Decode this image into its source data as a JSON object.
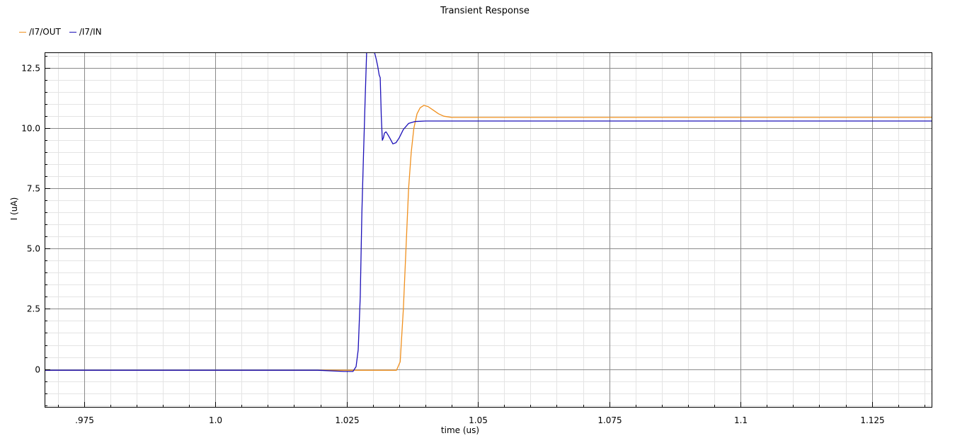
{
  "chart_data": {
    "type": "line",
    "title": "Transient Response",
    "xlabel": "time (us)",
    "ylabel": "I (uA)",
    "xlim": [
      0.9675,
      1.1365
    ],
    "ylim": [
      -1.6,
      13.15
    ],
    "grid": true,
    "legend_position": "top-left",
    "x_ticks": [
      {
        "value": 0.975,
        "label": ".975"
      },
      {
        "value": 1.0,
        "label": "1.0"
      },
      {
        "value": 1.025,
        "label": "1.025"
      },
      {
        "value": 1.05,
        "label": "1.05"
      },
      {
        "value": 1.075,
        "label": "1.075"
      },
      {
        "value": 1.1,
        "label": "1.1"
      },
      {
        "value": 1.125,
        "label": "1.125"
      }
    ],
    "y_ticks": [
      {
        "value": 0,
        "label": "0"
      },
      {
        "value": 2.5,
        "label": "2.5"
      },
      {
        "value": 5.0,
        "label": "5.0"
      },
      {
        "value": 7.5,
        "label": "7.5"
      },
      {
        "value": 10.0,
        "label": "10.0"
      },
      {
        "value": 12.5,
        "label": "12.5"
      }
    ],
    "series": [
      {
        "name": "/I7/OUT",
        "color": "#f0901e",
        "x": [
          0.9675,
          1.02,
          1.0345,
          1.0352,
          1.0358,
          1.0363,
          1.0368,
          1.0373,
          1.0378,
          1.0384,
          1.039,
          1.0397,
          1.0405,
          1.0415,
          1.0425,
          1.0435,
          1.045,
          1.06,
          1.1365
        ],
        "y": [
          -0.05,
          -0.05,
          -0.05,
          0.3,
          2.5,
          5.0,
          7.5,
          9.0,
          10.0,
          10.6,
          10.85,
          10.95,
          10.9,
          10.75,
          10.6,
          10.5,
          10.45,
          10.45,
          10.45
        ]
      },
      {
        "name": "/I7/IN",
        "color": "#1c10b8",
        "x": [
          0.9675,
          1.0195,
          1.0245,
          1.0262,
          1.0268,
          1.0272,
          1.0276,
          1.0279,
          1.0282,
          1.0285,
          1.0288,
          1.0291,
          1.0294,
          1.0299,
          1.0303,
          1.0306,
          1.0309,
          1.0312,
          1.0314,
          1.0316,
          1.0318,
          1.032,
          1.0322,
          1.0325,
          1.0328,
          1.0332,
          1.0338,
          1.0344,
          1.035,
          1.0358,
          1.0368,
          1.038,
          1.04,
          1.042,
          1.045,
          1.05,
          1.1365
        ],
        "y": [
          -0.05,
          -0.05,
          -0.1,
          -0.1,
          0.1,
          0.8,
          3.0,
          6.5,
          8.8,
          11.0,
          13.15,
          13.15,
          13.15,
          13.15,
          13.15,
          12.9,
          12.6,
          12.2,
          12.1,
          10.5,
          9.5,
          9.6,
          9.8,
          9.85,
          9.75,
          9.6,
          9.35,
          9.4,
          9.6,
          9.95,
          10.2,
          10.28,
          10.3,
          10.3,
          10.3,
          10.3,
          10.3
        ]
      }
    ]
  }
}
